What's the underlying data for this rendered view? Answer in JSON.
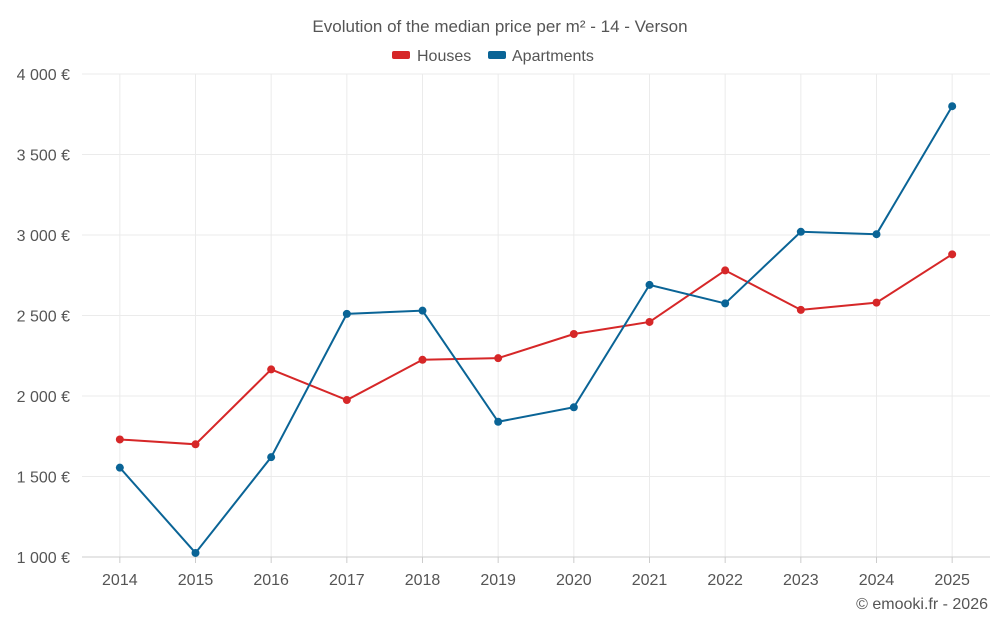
{
  "chart_data": {
    "type": "line",
    "title": "Evolution of the median price per m² - 14 - Verson",
    "categories": [
      "2014",
      "2015",
      "2016",
      "2017",
      "2018",
      "2019",
      "2020",
      "2021",
      "2022",
      "2023",
      "2024",
      "2025"
    ],
    "ylim": [
      1000,
      4000
    ],
    "yticks": [
      1000,
      1500,
      2000,
      2500,
      3000,
      3500,
      4000
    ],
    "ytick_labels": [
      "1 000 €",
      "1 500 €",
      "2 000 €",
      "2 500 €",
      "3 000 €",
      "3 500 €",
      "4 000 €"
    ],
    "grid": true,
    "legend_position": "top-center",
    "series": [
      {
        "name": "Houses",
        "color": "#d62728",
        "values": [
          1730,
          1700,
          2165,
          1975,
          2225,
          2235,
          2385,
          2460,
          2780,
          2535,
          2580,
          2880
        ]
      },
      {
        "name": "Apartments",
        "color": "#0a6496",
        "values": [
          1555,
          1025,
          1620,
          2510,
          2530,
          1840,
          1930,
          2690,
          2575,
          3020,
          3005,
          3800
        ]
      }
    ],
    "credit": "© emooki.fr - 2026"
  }
}
